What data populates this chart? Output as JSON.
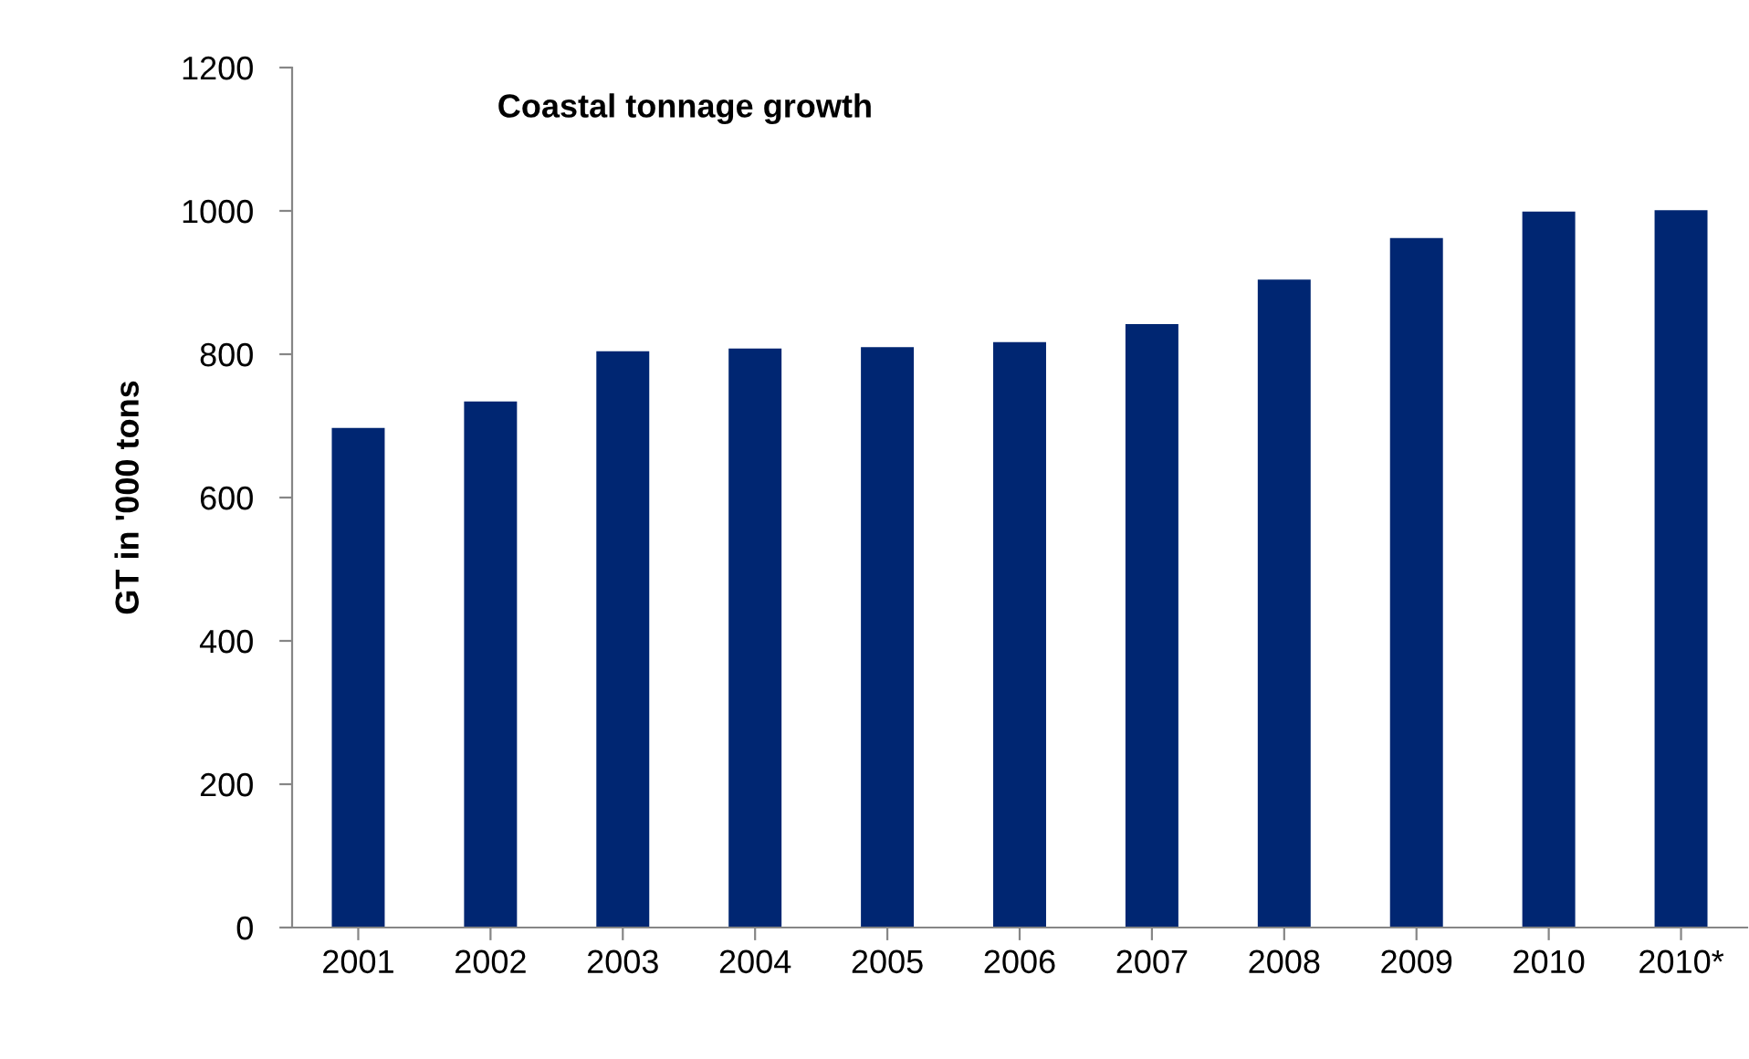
{
  "chart_data": {
    "type": "bar",
    "title": "Coastal tonnage growth",
    "ylabel": "GT in '000 tons",
    "categories": [
      "2001",
      "2002",
      "2003",
      "2004",
      "2005",
      "2006",
      "2007",
      "2008",
      "2009",
      "2010",
      "2010*"
    ],
    "values": [
      697,
      734,
      804,
      808,
      810,
      817,
      842,
      904,
      962,
      999,
      1001
    ],
    "color": "#002672",
    "ylim": [
      0,
      1200
    ],
    "yticks": [
      0,
      200,
      400,
      600,
      800,
      1000,
      1200
    ],
    "grid": false,
    "legend": false
  }
}
